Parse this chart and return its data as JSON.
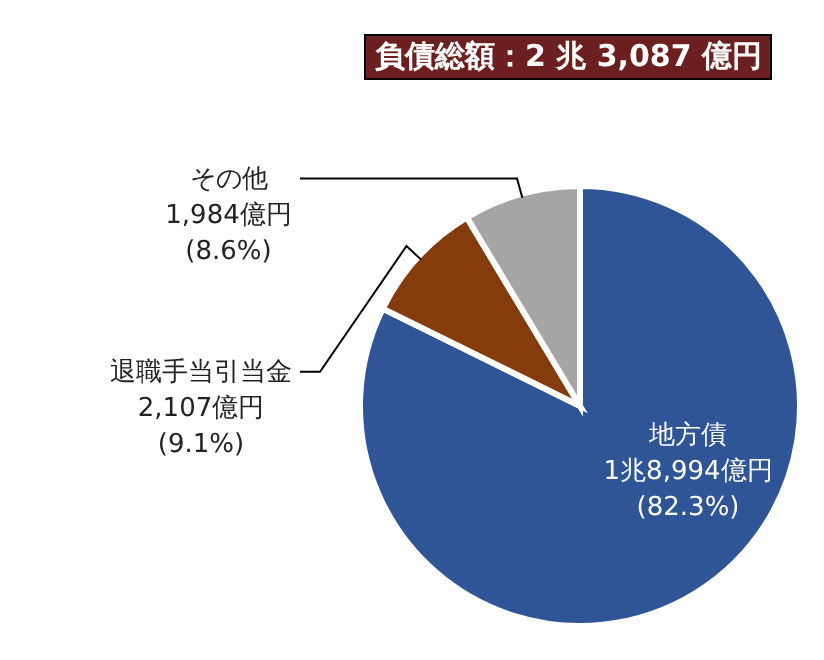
{
  "chart_data": {
    "type": "pie",
    "title": "負債総額：2 兆 3,087 億円",
    "categories": [
      "地方債",
      "退職手当引当金",
      "その他"
    ],
    "values": [
      82.3,
      9.1,
      8.6
    ],
    "colors": [
      "#2f5597",
      "#843c0c",
      "#a5a5a5"
    ],
    "value_labels": [
      "1兆8,994億円\n(82.3%)",
      "2,107億円\n(9.1%)",
      "1,984億円\n(8.6%)"
    ],
    "legend": false
  }
}
